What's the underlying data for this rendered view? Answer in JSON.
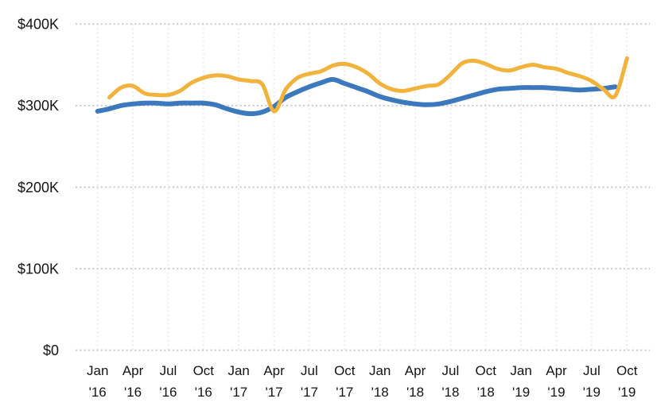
{
  "chart_data": {
    "type": "line",
    "title": "",
    "xlabel": "",
    "ylabel": "",
    "ylim": [
      0,
      400
    ],
    "y_unit": "USD thousands",
    "grid": "dotted horizontal and vertical quarter gridlines, no legend, no axis lines",
    "legend": "none",
    "y_tick_labels": [
      "$400K",
      "$300K",
      "$200K",
      "$100K",
      "$0"
    ],
    "y_tick_values": [
      400,
      300,
      200,
      100,
      0
    ],
    "x_tick_labels": [
      {
        "month": "Jan",
        "year": "'16"
      },
      {
        "month": "Apr",
        "year": "'16"
      },
      {
        "month": "Jul",
        "year": "'16"
      },
      {
        "month": "Oct",
        "year": "'16"
      },
      {
        "month": "Jan",
        "year": "'17"
      },
      {
        "month": "Apr",
        "year": "'17"
      },
      {
        "month": "Jul",
        "year": "'17"
      },
      {
        "month": "Oct",
        "year": "'17"
      },
      {
        "month": "Jan",
        "year": "'18"
      },
      {
        "month": "Apr",
        "year": "'18"
      },
      {
        "month": "Jul",
        "year": "'18"
      },
      {
        "month": "Oct",
        "year": "'18"
      },
      {
        "month": "Jan",
        "year": "'19"
      },
      {
        "month": "Apr",
        "year": "'19"
      },
      {
        "month": "Jul",
        "year": "'19"
      },
      {
        "month": "Oct",
        "year": "'19"
      }
    ],
    "x": [
      "Jan '16",
      "Feb '16",
      "Mar '16",
      "Apr '16",
      "May '16",
      "Jun '16",
      "Jul '16",
      "Aug '16",
      "Sep '16",
      "Oct '16",
      "Nov '16",
      "Dec '16",
      "Jan '17",
      "Feb '17",
      "Mar '17",
      "Apr '17",
      "May '17",
      "Jun '17",
      "Jul '17",
      "Aug '17",
      "Sep '17",
      "Oct '17",
      "Nov '17",
      "Dec '17",
      "Jan '18",
      "Feb '18",
      "Mar '18",
      "Apr '18",
      "May '18",
      "Jun '18",
      "Jul '18",
      "Aug '18",
      "Sep '18",
      "Oct '18",
      "Nov '18",
      "Dec '18",
      "Jan '19",
      "Feb '19",
      "Mar '19",
      "Apr '19",
      "May '19",
      "Jun '19",
      "Jul '19",
      "Aug '19",
      "Sep '19",
      "Oct '19"
    ],
    "series": [
      {
        "name": "blue-line",
        "color": "#3B78BE",
        "stroke_width": 6,
        "values": [
          293,
          296,
          300,
          302,
          303,
          303,
          302,
          303,
          303,
          303,
          301,
          296,
          292,
          290,
          292,
          299,
          310,
          317,
          323,
          328,
          332,
          327,
          322,
          317,
          311,
          307,
          304,
          302,
          301,
          302,
          305,
          309,
          313,
          317,
          320,
          321,
          322,
          322,
          322,
          321,
          320,
          319,
          320,
          321,
          323,
          null
        ]
      },
      {
        "name": "yellow-line",
        "color": "#F2B33D",
        "stroke_width": 5,
        "values": [
          null,
          310,
          322,
          324,
          315,
          313,
          313,
          318,
          328,
          334,
          337,
          336,
          332,
          330,
          326,
          293,
          320,
          334,
          339,
          342,
          349,
          351,
          347,
          339,
          327,
          320,
          318,
          321,
          324,
          326,
          338,
          352,
          355,
          351,
          345,
          343,
          347,
          350,
          347,
          345,
          340,
          336,
          330,
          320,
          312,
          358
        ]
      }
    ]
  },
  "colors": {
    "background": "#ffffff",
    "horizontal_gridline": "#c9c9c9",
    "vertical_gridline": "#ececec",
    "tick_text": "#141414",
    "series_blue": "#3B78BE",
    "series_yellow": "#F2B33D"
  }
}
